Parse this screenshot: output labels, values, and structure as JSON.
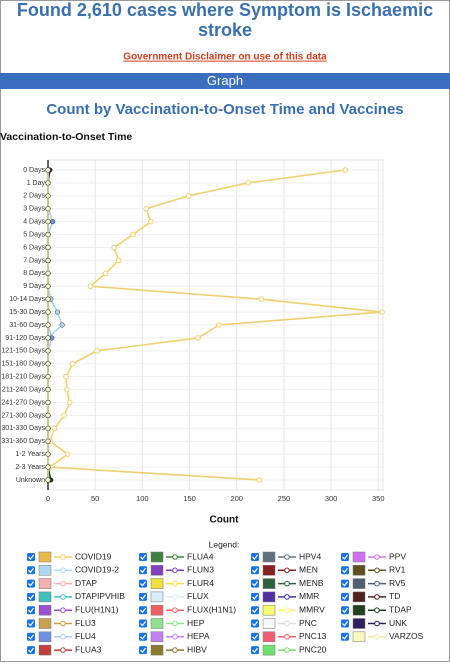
{
  "page": {
    "title": "Found 2,610 cases where Symptom is Ischaemic stroke",
    "disclaimer": "Government Disclaimer on use of this data",
    "section": "Graph"
  },
  "chart_data": {
    "type": "line",
    "orientation": "horizontal",
    "grid": true,
    "title": "Count by Vaccination-to-Onset Time and Vaccines",
    "y_label": "Vaccination-to-Onset Time",
    "x_label": "Count",
    "legend_title": "Legend:",
    "categories": [
      "0 Days",
      "1 Day",
      "2 Days",
      "3 Days",
      "4 Days",
      "5 Days",
      "6 Days",
      "7 Days",
      "8 Days",
      "9 Days",
      "10-14 Days",
      "15-30 Days",
      "31-60 Days",
      "91-120 Days",
      "121-150 Days",
      "151-180 Days",
      "181-210 Days",
      "211-240 Days",
      "241-270 Days",
      "271-300 Days",
      "301-330 Days",
      "331-360 Days",
      "1-2 Years",
      "2-3 Years",
      "Unknown"
    ],
    "xlim": [
      0,
      355
    ],
    "xticks": [
      0,
      50,
      100,
      150,
      200,
      250,
      300,
      350
    ],
    "series": [
      {
        "name": "COVID19",
        "color": "#e8b84a",
        "line": "#f0d070",
        "values": [
          315,
          212,
          149,
          104,
          109,
          90,
          70,
          75,
          61,
          45,
          226,
          354,
          181,
          159,
          52,
          26,
          19,
          20,
          23,
          17,
          7,
          2,
          21,
          2,
          224
        ]
      },
      {
        "name": "COVID19-2",
        "color": "#add8f0",
        "line": "#add8f0",
        "values": [
          0,
          0,
          0,
          0,
          0,
          0,
          0,
          0,
          0,
          0,
          3,
          10,
          15,
          0,
          0,
          0,
          0,
          0,
          0,
          0,
          0,
          0,
          0,
          0,
          0
        ]
      },
      {
        "name": "DTAP",
        "color": "#f4b0b0",
        "line": "#f4b0b0",
        "values": [
          0,
          0,
          0,
          0,
          0,
          0,
          0,
          0,
          0,
          0,
          0,
          0,
          0,
          0,
          0,
          0,
          0,
          0,
          0,
          0,
          0,
          0,
          0,
          0,
          0
        ]
      },
      {
        "name": "DTAPIPVHIB",
        "color": "#40c0c0",
        "line": "#40c0c0",
        "values": [
          0,
          0,
          0,
          0,
          0,
          0,
          0,
          0,
          0,
          0,
          0,
          0,
          0,
          0,
          0,
          0,
          0,
          0,
          0,
          0,
          0,
          0,
          0,
          0,
          0
        ]
      },
      {
        "name": "FLU(H1N1)",
        "color": "#9a50d0",
        "line": "#9a50d0",
        "values": [
          0,
          0,
          0,
          0,
          0,
          0,
          0,
          0,
          0,
          0,
          0,
          0,
          0,
          0,
          0,
          0,
          0,
          0,
          0,
          0,
          0,
          0,
          0,
          0,
          0
        ]
      },
      {
        "name": "FLU3",
        "color": "#c8a050",
        "line": "#c8a050",
        "values": [
          0,
          0,
          0,
          0,
          0,
          0,
          0,
          0,
          0,
          0,
          0,
          0,
          0,
          0,
          0,
          0,
          0,
          0,
          0,
          0,
          0,
          0,
          0,
          0,
          0
        ]
      },
      {
        "name": "FLU4",
        "color": "#7090e0",
        "line": "#b0c8f0",
        "values": [
          1,
          0,
          0,
          0,
          5,
          0,
          0,
          0,
          0,
          0,
          0,
          0,
          0,
          4,
          0,
          0,
          0,
          0,
          0,
          0,
          0,
          0,
          0,
          0,
          0
        ]
      },
      {
        "name": "FLUA3",
        "color": "#c04040",
        "line": "#c04040",
        "values": [
          0,
          0,
          0,
          0,
          0,
          0,
          0,
          0,
          0,
          0,
          0,
          0,
          0,
          0,
          0,
          0,
          0,
          0,
          0,
          0,
          0,
          0,
          0,
          0,
          0
        ]
      },
      {
        "name": "FLUA4",
        "color": "#408040",
        "line": "#408040",
        "values": [
          0,
          0,
          0,
          0,
          0,
          0,
          0,
          0,
          0,
          0,
          0,
          0,
          0,
          0,
          0,
          0,
          0,
          0,
          0,
          0,
          0,
          0,
          0,
          0,
          0
        ]
      },
      {
        "name": "FLUN3",
        "color": "#8040c0",
        "line": "#8040c0",
        "values": [
          0,
          0,
          0,
          0,
          0,
          0,
          0,
          0,
          0,
          0,
          0,
          0,
          0,
          0,
          0,
          0,
          0,
          0,
          0,
          0,
          0,
          0,
          0,
          0,
          0
        ]
      },
      {
        "name": "FLUR4",
        "color": "#f0e040",
        "line": "#f0e040",
        "values": [
          0,
          0,
          0,
          0,
          0,
          0,
          0,
          0,
          0,
          0,
          0,
          0,
          0,
          0,
          0,
          0,
          0,
          0,
          0,
          0,
          0,
          0,
          0,
          0,
          0
        ]
      },
      {
        "name": "FLUX",
        "color": "#d8f0f8",
        "line": "#d8f0f8",
        "values": [
          0,
          0,
          0,
          0,
          0,
          0,
          0,
          0,
          0,
          0,
          0,
          0,
          0,
          0,
          0,
          0,
          0,
          0,
          0,
          0,
          0,
          0,
          0,
          0,
          0
        ]
      },
      {
        "name": "FLUX(H1N1)",
        "color": "#f06060",
        "line": "#f06060",
        "values": [
          0,
          0,
          0,
          0,
          0,
          0,
          0,
          0,
          0,
          0,
          0,
          0,
          0,
          0,
          0,
          0,
          0,
          0,
          0,
          0,
          0,
          0,
          0,
          0,
          0
        ]
      },
      {
        "name": "HEP",
        "color": "#90e090",
        "line": "#90e090",
        "values": [
          0,
          0,
          0,
          0,
          0,
          0,
          0,
          0,
          0,
          0,
          0,
          0,
          0,
          0,
          0,
          0,
          0,
          0,
          0,
          0,
          0,
          0,
          0,
          0,
          0
        ]
      },
      {
        "name": "HEPA",
        "color": "#c080f0",
        "line": "#c080f0",
        "values": [
          0,
          0,
          0,
          0,
          0,
          0,
          0,
          0,
          0,
          0,
          0,
          0,
          0,
          0,
          0,
          0,
          0,
          0,
          0,
          0,
          0,
          0,
          0,
          0,
          0
        ]
      },
      {
        "name": "HIBV",
        "color": "#8a7a30",
        "line": "#8a7a30",
        "values": [
          0,
          0,
          0,
          0,
          0,
          0,
          0,
          0,
          0,
          0,
          0,
          0,
          0,
          0,
          0,
          0,
          0,
          0,
          0,
          0,
          0,
          0,
          0,
          0,
          0
        ]
      },
      {
        "name": "HPV4",
        "color": "#607080",
        "line": "#607080",
        "values": [
          0,
          0,
          0,
          0,
          0,
          0,
          0,
          0,
          0,
          0,
          0,
          0,
          0,
          0,
          0,
          0,
          0,
          0,
          0,
          0,
          0,
          0,
          0,
          0,
          0
        ]
      },
      {
        "name": "MEN",
        "color": "#8b2020",
        "line": "#8b2020",
        "values": [
          0,
          0,
          0,
          0,
          0,
          0,
          0,
          0,
          0,
          0,
          0,
          0,
          0,
          0,
          0,
          0,
          0,
          0,
          0,
          0,
          0,
          0,
          0,
          0,
          0
        ]
      },
      {
        "name": "MENB",
        "color": "#2e6040",
        "line": "#2e6040",
        "values": [
          0,
          0,
          0,
          0,
          0,
          0,
          0,
          0,
          0,
          0,
          0,
          0,
          0,
          0,
          0,
          0,
          0,
          0,
          0,
          0,
          0,
          0,
          0,
          0,
          0
        ]
      },
      {
        "name": "MMR",
        "color": "#5030a0",
        "line": "#5030a0",
        "values": [
          0,
          0,
          0,
          0,
          0,
          0,
          0,
          0,
          0,
          0,
          0,
          0,
          0,
          0,
          0,
          0,
          0,
          0,
          0,
          0,
          0,
          0,
          0,
          0,
          0
        ]
      },
      {
        "name": "MMRV",
        "color": "#f8f870",
        "line": "#f8f870",
        "values": [
          0,
          0,
          0,
          0,
          0,
          0,
          0,
          0,
          0,
          0,
          0,
          0,
          0,
          0,
          0,
          0,
          0,
          0,
          0,
          0,
          0,
          0,
          0,
          0,
          0
        ]
      },
      {
        "name": "PNC",
        "color": "#f8f8f8",
        "line": "#dddddd",
        "values": [
          0,
          0,
          0,
          0,
          0,
          0,
          0,
          0,
          0,
          0,
          0,
          0,
          0,
          0,
          0,
          0,
          0,
          0,
          0,
          0,
          0,
          0,
          0,
          0,
          0
        ]
      },
      {
        "name": "PNC13",
        "color": "#f06070",
        "line": "#f06070",
        "values": [
          0,
          0,
          0,
          0,
          0,
          0,
          0,
          0,
          0,
          0,
          0,
          0,
          0,
          0,
          0,
          0,
          0,
          0,
          0,
          0,
          0,
          0,
          0,
          0,
          0
        ]
      },
      {
        "name": "PNC20",
        "color": "#70e070",
        "line": "#70e070",
        "values": [
          0,
          0,
          0,
          0,
          0,
          0,
          0,
          0,
          0,
          0,
          0,
          0,
          0,
          0,
          0,
          0,
          0,
          0,
          0,
          0,
          0,
          0,
          0,
          0,
          0
        ]
      },
      {
        "name": "PPV",
        "color": "#d070f0",
        "line": "#d070f0",
        "values": [
          0,
          0,
          0,
          0,
          0,
          0,
          0,
          0,
          0,
          0,
          0,
          0,
          0,
          0,
          0,
          0,
          0,
          0,
          0,
          0,
          0,
          0,
          0,
          0,
          0
        ]
      },
      {
        "name": "RV1",
        "color": "#605020",
        "line": "#605020",
        "values": [
          0,
          0,
          0,
          0,
          0,
          0,
          0,
          0,
          0,
          0,
          0,
          0,
          0,
          0,
          0,
          0,
          0,
          0,
          0,
          0,
          0,
          0,
          0,
          0,
          0
        ]
      },
      {
        "name": "RV5",
        "color": "#506070",
        "line": "#506070",
        "values": [
          0,
          0,
          0,
          0,
          0,
          0,
          0,
          0,
          0,
          0,
          0,
          0,
          0,
          0,
          0,
          0,
          0,
          0,
          0,
          0,
          0,
          0,
          0,
          0,
          0
        ]
      },
      {
        "name": "TD",
        "color": "#502020",
        "line": "#502020",
        "values": [
          0,
          0,
          0,
          0,
          0,
          0,
          0,
          0,
          0,
          0,
          0,
          0,
          0,
          0,
          0,
          0,
          0,
          0,
          0,
          0,
          0,
          0,
          0,
          0,
          0
        ]
      },
      {
        "name": "TDAP",
        "color": "#204020",
        "line": "#204020",
        "values": [
          0,
          0,
          0,
          0,
          0,
          0,
          0,
          0,
          0,
          0,
          0,
          0,
          0,
          0,
          0,
          0,
          0,
          0,
          0,
          0,
          0,
          0,
          0,
          0,
          3
        ]
      },
      {
        "name": "UNK",
        "color": "#302060",
        "line": "#302060",
        "values": [
          2,
          0,
          0,
          0,
          0,
          0,
          0,
          0,
          0,
          0,
          0,
          0,
          0,
          0,
          0,
          0,
          0,
          0,
          0,
          0,
          0,
          0,
          0,
          0,
          0
        ]
      },
      {
        "name": "VARZOS",
        "color": "#f8f8c0",
        "line": "#f0f0a0",
        "values": [
          0,
          0,
          0,
          0,
          0,
          0,
          0,
          0,
          0,
          0,
          0,
          0,
          0,
          0,
          0,
          0,
          0,
          0,
          0,
          0,
          0,
          0,
          0,
          0,
          0
        ]
      }
    ]
  }
}
